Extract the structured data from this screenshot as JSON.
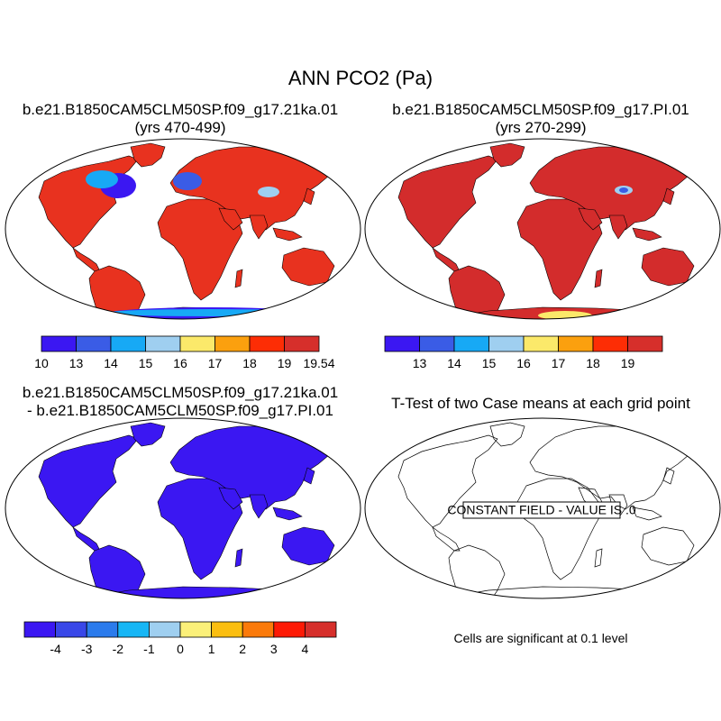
{
  "title": "ANN PCO2 (Pa)",
  "panels": [
    {
      "id": "case1",
      "title_lines": [
        "b.e21.B1850CAM5CLM50SP.f09_g17.21ka.01",
        "(yrs 470-499)"
      ],
      "land_color": "#e8321f",
      "colorbar": {
        "colors": [
          "#3b17f2",
          "#3a5ce6",
          "#17a9f5",
          "#9fcff0",
          "#fbe96a",
          "#fba00e",
          "#fd2d05",
          "#d62f2b"
        ],
        "labels": [
          "10",
          "13",
          "14",
          "15",
          "16",
          "17",
          "18",
          "19",
          "19.54"
        ]
      }
    },
    {
      "id": "case2",
      "title_lines": [
        "b.e21.B1850CAM5CLM50SP.f09_g17.PI.01",
        "(yrs 270-299)"
      ],
      "land_color": "#d32c2c",
      "colorbar": {
        "colors": [
          "#3b17f2",
          "#3a5ce6",
          "#17a9f5",
          "#9fcff0",
          "#fbe96a",
          "#fba00e",
          "#fd2d05",
          "#d62f2b"
        ],
        "labels": [
          "13",
          "14",
          "15",
          "16",
          "17",
          "18",
          "19"
        ]
      }
    },
    {
      "id": "difference",
      "title_lines": [
        "b.e21.B1850CAM5CLM50SP.f09_g17.21ka.01",
        "- b.e21.B1850CAM5CLM50SP.f09_g17.PI.01"
      ],
      "land_color": "#3b17f2",
      "colorbar": {
        "colors": [
          "#3b17f2",
          "#3947e8",
          "#2b7bec",
          "#17b6f5",
          "#9fcff0",
          "#fbf079",
          "#fbbe10",
          "#fb7a0a",
          "#fd1a05",
          "#d62f2b"
        ],
        "labels": [
          "-4",
          "-3",
          "-2",
          "-1",
          "0",
          "1",
          "2",
          "3",
          "4"
        ]
      }
    },
    {
      "id": "ttest",
      "title_lines": [
        "T-Test of two Case means at each grid point"
      ],
      "annotation": "CONSTANT FIELD - VALUE IS .0",
      "footer": "Cells are significant at 0.1 level"
    }
  ]
}
